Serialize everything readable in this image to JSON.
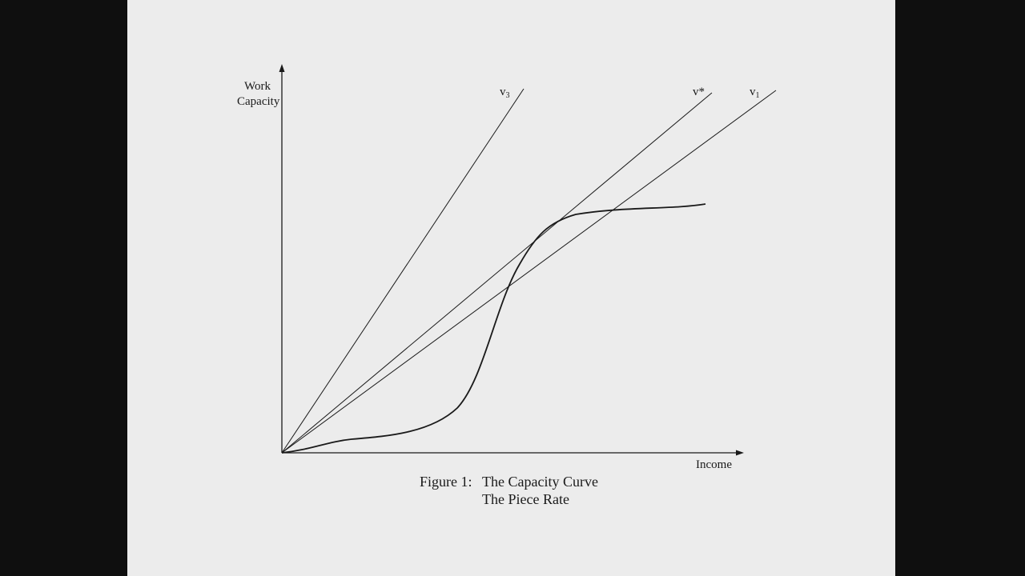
{
  "figure": {
    "y_axis_label_line1": "Work",
    "y_axis_label_line2": "Capacity",
    "x_axis_label": "Income",
    "caption_prefix": "Figure 1:",
    "caption_line1": "The Capacity Curve",
    "caption_line2": "The Piece Rate"
  },
  "rays": [
    {
      "base": "v",
      "sub": "3"
    },
    {
      "base": "v*",
      "sub": ""
    },
    {
      "base": "v",
      "sub": "1"
    }
  ],
  "colors": {
    "page_background": "#0f0f0f",
    "slide_background": "#ececec",
    "ink": "#1a1a1a"
  }
}
